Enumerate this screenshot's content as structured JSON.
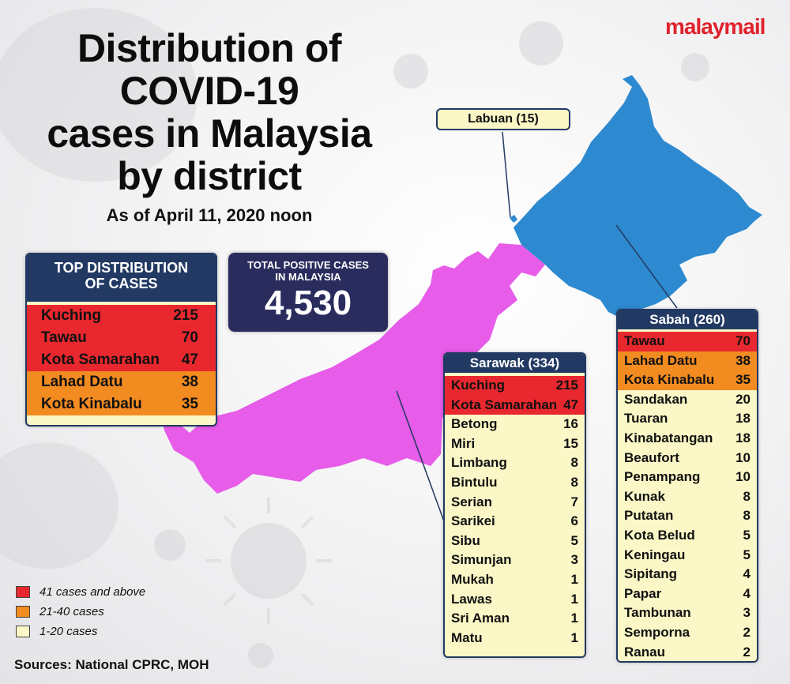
{
  "brand": "malaymail",
  "title_lines": [
    "Distribution of",
    "COVID-19",
    "cases in Malaysia",
    "by district"
  ],
  "subtitle": "As of April 11, 2020 noon",
  "colors": {
    "high": "#e8282e",
    "mid": "#f28b20",
    "low": "#fbf7c6",
    "sarawak_map": "#e75ce8",
    "sabah_map": "#2e8ad0",
    "header": "#223a63",
    "total_bg": "#2b2c5e"
  },
  "labuan": {
    "label": "Labuan (15)",
    "name": "Labuan",
    "cases": 15
  },
  "top_distribution": {
    "title_lines": [
      "TOP DISTRIBUTION",
      "OF CASES"
    ],
    "rows": [
      {
        "name": "Kuching",
        "cases": "215",
        "level": "high"
      },
      {
        "name": "Tawau",
        "cases": "70",
        "level": "high"
      },
      {
        "name": "Kota Samarahan",
        "cases": "47",
        "level": "high"
      },
      {
        "name": "Lahad Datu",
        "cases": "38",
        "level": "mid"
      },
      {
        "name": "Kota Kinabalu",
        "cases": "35",
        "level": "mid"
      }
    ]
  },
  "total": {
    "label_lines": [
      "TOTAL POSITIVE CASES",
      "IN MALAYSIA"
    ],
    "value": "4,530"
  },
  "sarawak": {
    "title": "Sarawak (334)",
    "rows": [
      {
        "name": "Kuching",
        "cases": "215",
        "level": "high"
      },
      {
        "name": "Kota Samarahan",
        "cases": "47",
        "level": "high"
      },
      {
        "name": "Betong",
        "cases": "16",
        "level": "low"
      },
      {
        "name": "Miri",
        "cases": "15",
        "level": "low"
      },
      {
        "name": "Limbang",
        "cases": "8",
        "level": "low"
      },
      {
        "name": "Bintulu",
        "cases": "8",
        "level": "low"
      },
      {
        "name": "Serian",
        "cases": "7",
        "level": "low"
      },
      {
        "name": "Sarikei",
        "cases": "6",
        "level": "low"
      },
      {
        "name": "Sibu",
        "cases": "5",
        "level": "low"
      },
      {
        "name": "Simunjan",
        "cases": "3",
        "level": "low"
      },
      {
        "name": "Mukah",
        "cases": "1",
        "level": "low"
      },
      {
        "name": "Lawas",
        "cases": "1",
        "level": "low"
      },
      {
        "name": "Sri Aman",
        "cases": "1",
        "level": "low"
      },
      {
        "name": "Matu",
        "cases": "1",
        "level": "low"
      }
    ]
  },
  "sabah": {
    "title": "Sabah (260)",
    "rows": [
      {
        "name": "Tawau",
        "cases": "70",
        "level": "high"
      },
      {
        "name": "Lahad Datu",
        "cases": "38",
        "level": "mid"
      },
      {
        "name": "Kota Kinabalu",
        "cases": "35",
        "level": "mid"
      },
      {
        "name": "Sandakan",
        "cases": "20",
        "level": "low"
      },
      {
        "name": "Tuaran",
        "cases": "18",
        "level": "low"
      },
      {
        "name": "Kinabatangan",
        "cases": "18",
        "level": "low"
      },
      {
        "name": "Beaufort",
        "cases": "10",
        "level": "low"
      },
      {
        "name": "Penampang",
        "cases": "10",
        "level": "low"
      },
      {
        "name": "Kunak",
        "cases": "8",
        "level": "low"
      },
      {
        "name": "Putatan",
        "cases": "8",
        "level": "low"
      },
      {
        "name": "Kota Belud",
        "cases": "5",
        "level": "low"
      },
      {
        "name": "Keningau",
        "cases": "5",
        "level": "low"
      },
      {
        "name": "Sipitang",
        "cases": "4",
        "level": "low"
      },
      {
        "name": "Papar",
        "cases": "4",
        "level": "low"
      },
      {
        "name": "Tambunan",
        "cases": "3",
        "level": "low"
      },
      {
        "name": "Semporna",
        "cases": "2",
        "level": "low"
      },
      {
        "name": "Ranau",
        "cases": "2",
        "level": "low"
      }
    ]
  },
  "legend": [
    {
      "label": "41 cases and above",
      "level": "high"
    },
    {
      "label": "21-40 cases",
      "level": "mid"
    },
    {
      "label": "1-20 cases",
      "level": "low"
    }
  ],
  "sources": "Sources: National CPRC, MOH"
}
